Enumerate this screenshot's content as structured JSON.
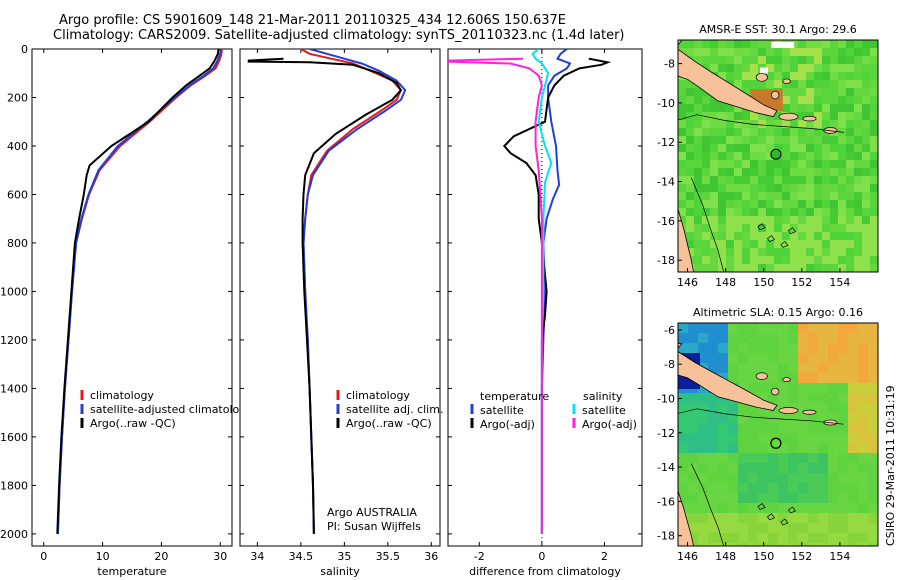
{
  "title_line1": "Argo profile: CS 5901609_148 21-Mar-2011 20110325_434 12.606S 150.637E",
  "title_line2": "Climatology: CARS2009. Satellite-adjusted climatology: synTS_20110323.nc (1.4d later)",
  "stamp": "CSIRO 29-Mar-2011 10:31:19",
  "colors": {
    "clim": "#e41a1c",
    "sat": "#1f3fd8",
    "argo": "#000000",
    "sal_sat": "#00e5ee",
    "sal_argo": "#ff22dd",
    "land": "#f7c29a",
    "sea": "#55cc33"
  },
  "chart_data": [
    {
      "type": "line",
      "name": "temperature-profile",
      "xlabel": "temperature",
      "ylabel": "",
      "xlim": [
        -2,
        32
      ],
      "ylim": [
        2050,
        0
      ],
      "xticks": [
        0,
        10,
        20,
        30
      ],
      "yticks": [
        0,
        200,
        400,
        600,
        800,
        1000,
        1200,
        1400,
        1600,
        1800,
        2000
      ],
      "legend": [
        "climatology",
        "satellite-adjusted climatology",
        "Argo(..raw -QC)"
      ],
      "series": [
        {
          "name": "climatology",
          "color_key": "clim",
          "points": [
            [
              30.3,
              0
            ],
            [
              30.2,
              20
            ],
            [
              29.8,
              50
            ],
            [
              29.2,
              80
            ],
            [
              27.5,
              110
            ],
            [
              25,
              150
            ],
            [
              22.5,
              200
            ],
            [
              18,
              300
            ],
            [
              13,
              400
            ],
            [
              9.5,
              500
            ],
            [
              7.7,
              600
            ],
            [
              6.5,
              700
            ],
            [
              5.5,
              800
            ],
            [
              4.8,
              1000
            ],
            [
              4.2,
              1200
            ],
            [
              3.6,
              1400
            ],
            [
              3.1,
              1600
            ],
            [
              2.7,
              1800
            ],
            [
              2.4,
              2000
            ]
          ]
        },
        {
          "name": "satellite-adjusted climatology",
          "color_key": "sat",
          "points": [
            [
              30.1,
              0
            ],
            [
              30,
              20
            ],
            [
              29.5,
              50
            ],
            [
              28.8,
              80
            ],
            [
              27.2,
              110
            ],
            [
              24.8,
              150
            ],
            [
              22.3,
              200
            ],
            [
              17.6,
              300
            ],
            [
              12.6,
              400
            ],
            [
              9.3,
              500
            ],
            [
              7.6,
              600
            ],
            [
              6.4,
              700
            ],
            [
              5.5,
              800
            ],
            [
              4.8,
              1000
            ],
            [
              4.2,
              1200
            ],
            [
              3.6,
              1400
            ],
            [
              3.1,
              1600
            ],
            [
              2.7,
              1800
            ],
            [
              2.4,
              2000
            ]
          ]
        },
        {
          "name": "Argo",
          "color_key": "argo",
          "points": [
            [
              29.7,
              0
            ],
            [
              29.6,
              20
            ],
            [
              29,
              50
            ],
            [
              28.2,
              80
            ],
            [
              26.5,
              110
            ],
            [
              24.2,
              150
            ],
            [
              21.9,
              200
            ],
            [
              17.8,
              300
            ],
            [
              11.5,
              400
            ],
            [
              7.8,
              480
            ],
            [
              7.3,
              520
            ],
            [
              6.8,
              600
            ],
            [
              6,
              700
            ],
            [
              5.3,
              800
            ],
            [
              4.7,
              1000
            ],
            [
              4.1,
              1200
            ],
            [
              3.5,
              1400
            ],
            [
              3,
              1600
            ],
            [
              2.6,
              1800
            ],
            [
              2.3,
              2000
            ]
          ]
        }
      ]
    },
    {
      "type": "line",
      "name": "salinity-profile",
      "xlabel": "salinity",
      "ylabel": "",
      "xlim": [
        33.8,
        36.1
      ],
      "ylim": [
        2050,
        0
      ],
      "xticks": [
        34,
        34.5,
        35,
        35.5,
        36
      ],
      "legend": [
        "climatology",
        "satellite adj. clim.",
        "Argo(..raw -QC)"
      ],
      "annotation": [
        "Argo AUSTRALIA",
        "PI: Susan Wijffels"
      ],
      "series": [
        {
          "name": "climatology",
          "color_key": "clim",
          "points": [
            [
              34.5,
              0
            ],
            [
              34.6,
              20
            ],
            [
              34.85,
              40
            ],
            [
              35.1,
              60
            ],
            [
              35.3,
              90
            ],
            [
              35.55,
              130
            ],
            [
              35.65,
              170
            ],
            [
              35.6,
              210
            ],
            [
              35.4,
              260
            ],
            [
              35.1,
              330
            ],
            [
              34.8,
              420
            ],
            [
              34.62,
              520
            ],
            [
              34.58,
              600
            ],
            [
              34.55,
              700
            ],
            [
              34.53,
              800
            ],
            [
              34.55,
              1000
            ],
            [
              34.58,
              1200
            ],
            [
              34.6,
              1400
            ],
            [
              34.62,
              1600
            ],
            [
              34.64,
              1800
            ],
            [
              34.65,
              2000
            ]
          ]
        },
        {
          "name": "satellite adj. clim.",
          "color_key": "sat",
          "points": [
            [
              34.6,
              0
            ],
            [
              34.8,
              20
            ],
            [
              35,
              40
            ],
            [
              35.2,
              60
            ],
            [
              35.4,
              90
            ],
            [
              35.6,
              130
            ],
            [
              35.7,
              170
            ],
            [
              35.65,
              210
            ],
            [
              35.45,
              260
            ],
            [
              35.15,
              330
            ],
            [
              34.82,
              420
            ],
            [
              34.64,
              520
            ],
            [
              34.58,
              600
            ],
            [
              34.55,
              700
            ],
            [
              34.53,
              800
            ],
            [
              34.55,
              1000
            ],
            [
              34.58,
              1200
            ],
            [
              34.6,
              1400
            ],
            [
              34.62,
              1600
            ],
            [
              34.64,
              1800
            ],
            [
              34.65,
              2000
            ]
          ]
        },
        {
          "name": "Argo",
          "color_key": "argo",
          "points": [
            [
              34.3,
              40
            ],
            [
              33.9,
              48
            ],
            [
              33.9,
              52
            ],
            [
              34.6,
              55
            ],
            [
              35.1,
              65
            ],
            [
              35.4,
              100
            ],
            [
              35.6,
              140
            ],
            [
              35.65,
              170
            ],
            [
              35.55,
              210
            ],
            [
              35.25,
              270
            ],
            [
              34.9,
              350
            ],
            [
              34.65,
              430
            ],
            [
              34.55,
              520
            ],
            [
              34.53,
              600
            ],
            [
              34.52,
              700
            ],
            [
              34.52,
              800
            ],
            [
              34.54,
              1000
            ],
            [
              34.57,
              1200
            ],
            [
              34.6,
              1400
            ],
            [
              34.62,
              1600
            ],
            [
              34.64,
              1800
            ],
            [
              34.65,
              2000
            ]
          ]
        }
      ]
    },
    {
      "type": "line",
      "name": "difference-profile",
      "xlabel": "difference from climatology",
      "ylabel": "",
      "xlim": [
        -3,
        3.2
      ],
      "ylim": [
        2050,
        0
      ],
      "xticks": [
        -2,
        0,
        2
      ],
      "legend": {
        "temperature": [
          "satellite",
          "Argo(-adj)"
        ],
        "salinity": [
          "satellite",
          "Argo(-adj)"
        ],
        "temperature_title": "temperature",
        "salinity_title": "salinity"
      },
      "series": [
        {
          "name": "temperature satellite",
          "color_key": "sat",
          "points": [
            [
              0.8,
              0
            ],
            [
              0.6,
              20
            ],
            [
              0.5,
              40
            ],
            [
              0.9,
              60
            ],
            [
              0.8,
              80
            ],
            [
              0.4,
              110
            ],
            [
              0.2,
              150
            ],
            [
              0.2,
              200
            ],
            [
              0.3,
              300
            ],
            [
              0.45,
              400
            ],
            [
              0.5,
              500
            ],
            [
              0.55,
              560
            ],
            [
              0.35,
              620
            ],
            [
              0.15,
              700
            ],
            [
              0.05,
              800
            ],
            [
              0.1,
              1000
            ],
            [
              0.05,
              1200
            ],
            [
              0,
              1400
            ],
            [
              0,
              1600
            ],
            [
              0,
              1800
            ],
            [
              0,
              2000
            ]
          ]
        },
        {
          "name": "temperature Argo(-adj)",
          "color_key": "argo",
          "points": [
            [
              1.5,
              40
            ],
            [
              2.1,
              55
            ],
            [
              1.9,
              65
            ],
            [
              1.2,
              80
            ],
            [
              0.7,
              110
            ],
            [
              0.4,
              150
            ],
            [
              0.2,
              200
            ],
            [
              0.1,
              300
            ],
            [
              -0.9,
              360
            ],
            [
              -1.2,
              400
            ],
            [
              -1,
              430
            ],
            [
              -0.5,
              470
            ],
            [
              -0.2,
              520
            ],
            [
              -0.1,
              600
            ],
            [
              -0.1,
              700
            ],
            [
              0,
              800
            ],
            [
              0.15,
              1000
            ],
            [
              0.1,
              1100
            ],
            [
              0,
              1200
            ],
            [
              0,
              1400
            ],
            [
              0,
              1600
            ],
            [
              0,
              1800
            ],
            [
              0,
              2000
            ]
          ]
        },
        {
          "name": "salinity satellite",
          "color_key": "sal_sat",
          "points": [
            [
              -0.1,
              0
            ],
            [
              -0.3,
              20
            ],
            [
              -0.2,
              40
            ],
            [
              0,
              60
            ],
            [
              0.2,
              100
            ],
            [
              0.1,
              150
            ],
            [
              0,
              200
            ],
            [
              -0.1,
              300
            ],
            [
              0.1,
              400
            ],
            [
              0.3,
              470
            ],
            [
              0.1,
              550
            ],
            [
              0.05,
              700
            ],
            [
              0.05,
              800
            ],
            [
              0.05,
              1000
            ],
            [
              0,
              1200
            ],
            [
              0,
              1400
            ],
            [
              0,
              1600
            ],
            [
              0,
              1800
            ],
            [
              0,
              2000
            ]
          ]
        },
        {
          "name": "salinity Argo(-adj)",
          "color_key": "sal_argo",
          "points": [
            [
              -0.6,
              40
            ],
            [
              -3,
              48
            ],
            [
              -3,
              52
            ],
            [
              -1,
              60
            ],
            [
              -0.4,
              80
            ],
            [
              -0.1,
              110
            ],
            [
              0,
              150
            ],
            [
              -0.1,
              200
            ],
            [
              -0.2,
              300
            ],
            [
              -0.2,
              400
            ],
            [
              -0.1,
              500
            ],
            [
              -0.05,
              600
            ],
            [
              0,
              700
            ],
            [
              0,
              800
            ],
            [
              0,
              1000
            ],
            [
              0,
              1200
            ],
            [
              0,
              1400
            ],
            [
              0,
              1600
            ],
            [
              0,
              1800
            ],
            [
              0,
              2000
            ]
          ]
        }
      ]
    },
    {
      "type": "heatmap",
      "name": "sst-map",
      "title": "AMSR-E SST: 30.1 Argo: 29.6",
      "xlim": [
        145.5,
        156
      ],
      "ylim": [
        -18.6,
        -6.8
      ],
      "xticks": [
        146,
        148,
        150,
        152,
        154
      ],
      "yticks": [
        -8,
        -10,
        -12,
        -14,
        -16,
        -18
      ],
      "marker": [
        150.64,
        -12.61
      ]
    },
    {
      "type": "heatmap",
      "name": "sla-map",
      "title": "Altimetric SLA: 0.15 Argo: 0.16",
      "xlim": [
        145.5,
        156
      ],
      "ylim": [
        -18.6,
        -5.6
      ],
      "xticks": [
        146,
        148,
        150,
        152,
        154
      ],
      "yticks": [
        -6,
        -8,
        -10,
        -12,
        -14,
        -16,
        -18
      ],
      "marker": [
        150.64,
        -12.61
      ]
    }
  ]
}
